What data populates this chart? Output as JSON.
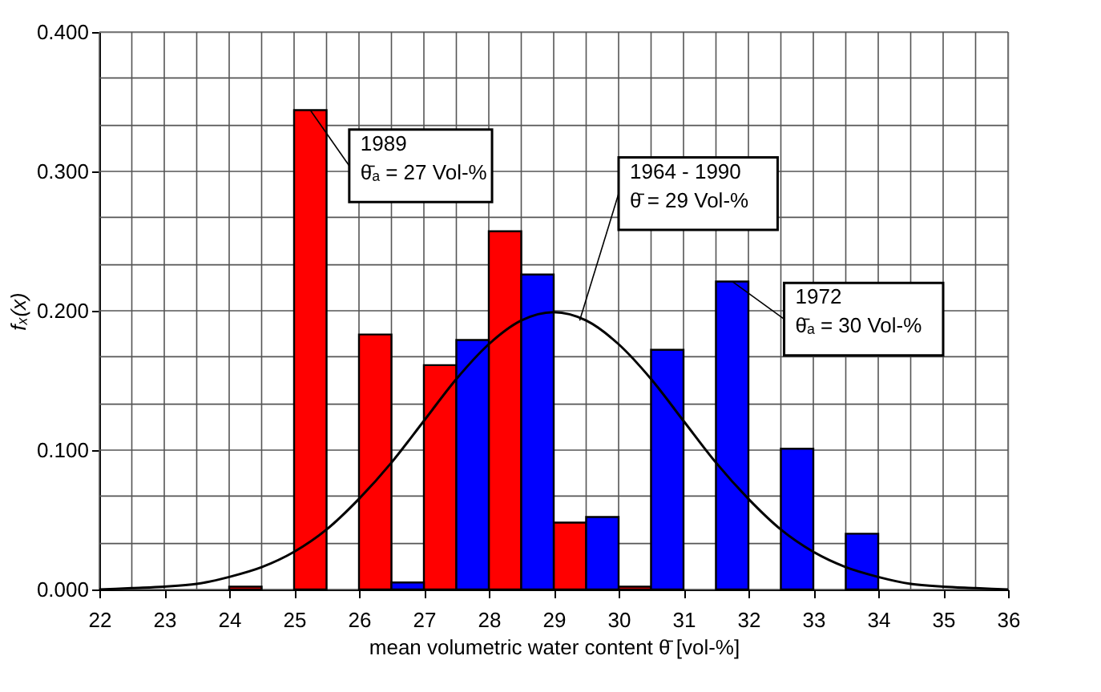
{
  "chart_data": {
    "type": "bar",
    "xlabel": "mean volumetric water content θ̄ [vol-%]",
    "ylabel": "fₓ(x)",
    "series": [
      {
        "color": "#ff0000",
        "x": [
          24.25,
          25.25,
          26.25,
          27.25,
          28.25,
          29.25,
          30.25
        ],
        "values": [
          0.002,
          0.344,
          0.183,
          0.161,
          0.257,
          0.048,
          0.002
        ]
      },
      {
        "color": "#0000ff",
        "x": [
          26.75,
          27.75,
          28.75,
          29.75,
          30.75,
          31.75,
          32.75,
          33.75
        ],
        "values": [
          0.005,
          0.179,
          0.226,
          0.052,
          0.172,
          0.221,
          0.101,
          0.04
        ]
      },
      {
        "type": "line",
        "color": "#000000",
        "x": [
          22,
          22.5,
          23,
          23.5,
          24,
          24.5,
          25,
          25.5,
          26,
          26.5,
          27,
          27.5,
          28,
          28.5,
          29,
          29.5,
          30,
          30.5,
          31,
          31.5,
          32,
          32.5,
          33,
          33.5,
          34,
          34.5,
          35,
          35.5,
          36
        ],
        "values": [
          0.0,
          0.001,
          0.002,
          0.004,
          0.009,
          0.016,
          0.027,
          0.043,
          0.065,
          0.091,
          0.121,
          0.151,
          0.176,
          0.193,
          0.199,
          0.193,
          0.176,
          0.151,
          0.121,
          0.091,
          0.065,
          0.043,
          0.027,
          0.016,
          0.009,
          0.004,
          0.002,
          0.001,
          0.0
        ]
      }
    ],
    "xlim": [
      22,
      36
    ],
    "xticks": [
      22,
      {
        "value": 22.5,
        "label": null
      },
      23,
      {
        "value": 23.5,
        "label": null
      },
      24,
      {
        "value": 24.5,
        "label": null
      },
      25,
      {
        "value": 25.5,
        "label": null
      },
      26,
      {
        "value": 26.5,
        "label": null
      },
      27,
      {
        "value": 27.5,
        "label": null
      },
      28,
      {
        "value": 28.5,
        "label": null
      },
      29,
      {
        "value": 29.5,
        "label": null
      },
      30,
      {
        "value": 30.5,
        "label": null
      },
      31,
      {
        "value": 31.5,
        "label": null
      },
      32,
      {
        "value": 32.5,
        "label": null
      },
      33,
      {
        "value": 33.5,
        "label": null
      },
      34,
      {
        "value": 34.5,
        "label": null
      },
      35,
      {
        "value": 35.5,
        "label": null
      },
      36
    ],
    "ylim": [
      0,
      0.4
    ],
    "yticks": [
      {
        "value": 0,
        "label": "0.000"
      },
      {
        "value": 0.033,
        "label": null
      },
      {
        "value": 0.067,
        "label": null
      },
      {
        "value": 0.1,
        "label": "0.100"
      },
      {
        "value": 0.133,
        "label": null
      },
      {
        "value": 0.167,
        "label": null
      },
      {
        "value": 0.2,
        "label": "0.200"
      },
      {
        "value": 0.233,
        "label": null
      },
      {
        "value": 0.267,
        "label": null
      },
      {
        "value": 0.3,
        "label": "0.300"
      },
      {
        "value": 0.333,
        "label": null
      },
      {
        "value": 0.367,
        "label": null
      },
      {
        "value": 0.4,
        "label": "0.400"
      }
    ],
    "grid": true,
    "annotations": [
      {
        "text": "1989\nθ̄ₐ = 27 Vol-%",
        "x": 25.25,
        "y": 0.344
      },
      {
        "text": "1964 - 1990\nθ̄ = 29 Vol-%",
        "x": 29.4,
        "y": 0.193
      },
      {
        "text": "1972\nθ̄ₐ = 30 Vol-%",
        "x": 31.75,
        "y": 0.221
      }
    ]
  }
}
